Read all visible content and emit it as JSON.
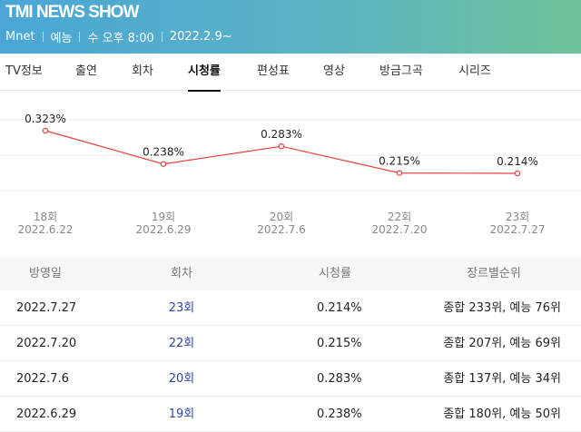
{
  "header": {
    "title": "TMI NEWS SHOW",
    "channel": "Mnet",
    "genre": "예능",
    "schedule": "수 오후 8:00",
    "start_date": "2022.2.9~"
  },
  "tabs": [
    {
      "label": "TV정보"
    },
    {
      "label": "출연"
    },
    {
      "label": "회차"
    },
    {
      "label": "시청률",
      "active": true
    },
    {
      "label": "편성표"
    },
    {
      "label": "영상"
    },
    {
      "label": "방금그곡"
    },
    {
      "label": "시리즈"
    }
  ],
  "chart_data": {
    "type": "line",
    "categories": [
      "18회",
      "19회",
      "20회",
      "22회",
      "23회"
    ],
    "dates": [
      "2022.6.22",
      "2022.6.29",
      "2022.7.6",
      "2022.7.20",
      "2022.7.27"
    ],
    "values": [
      0.323,
      0.238,
      0.283,
      0.215,
      0.214
    ],
    "value_labels": [
      "0.323%",
      "0.238%",
      "0.283%",
      "0.215%",
      "0.214%"
    ],
    "line_color": "#e8413a"
  },
  "table": {
    "headers": [
      "방영일",
      "회차",
      "시청률",
      "장르별순위"
    ],
    "rows": [
      {
        "date": "2022.7.27",
        "episode": "23회",
        "rating": "0.214%",
        "rank": "종합 233위, 예능 76위"
      },
      {
        "date": "2022.7.20",
        "episode": "22회",
        "rating": "0.215%",
        "rank": "종합 207위, 예능 69위"
      },
      {
        "date": "2022.7.6",
        "episode": "20회",
        "rating": "0.283%",
        "rank": "종합 137위, 예능 34위"
      },
      {
        "date": "2022.6.29",
        "episode": "19회",
        "rating": "0.238%",
        "rank": "종합 180위, 예능 50위"
      }
    ]
  }
}
